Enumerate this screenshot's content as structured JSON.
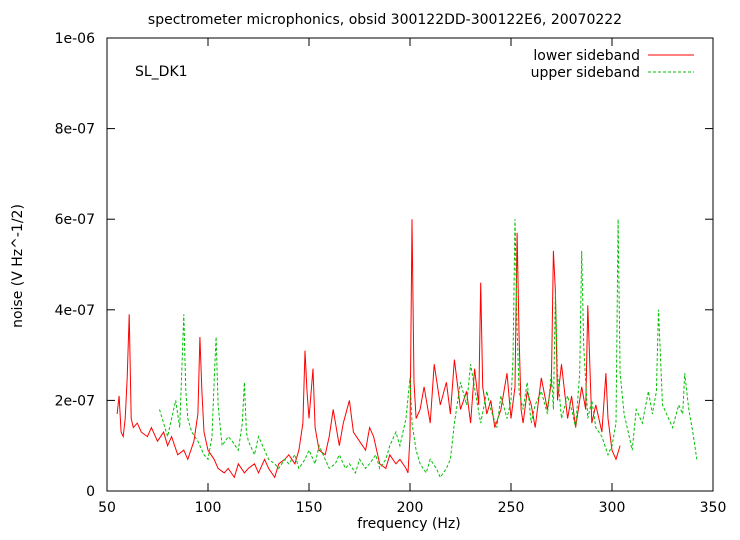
{
  "chart_data": {
    "type": "line",
    "title": "spectrometer microphonics, obsid 300122DD-300122E6, 20070222",
    "annotation": "SL_DK1",
    "xlabel": "frequency (Hz)",
    "ylabel": "noise (V Hz^-1/2)",
    "xlim": [
      50,
      350
    ],
    "ylim": [
      0,
      1e-06
    ],
    "x_ticks": [
      50,
      100,
      150,
      200,
      250,
      300,
      350
    ],
    "x_tick_labels": [
      "50",
      "100",
      "150",
      "200",
      "250",
      "300",
      "350"
    ],
    "y_ticks": [
      0,
      2e-07,
      4e-07,
      6e-07,
      8e-07,
      1e-06
    ],
    "y_tick_labels": [
      "0",
      "2e-07",
      "4e-07",
      "6e-07",
      "8e-07",
      "1e-06"
    ],
    "grid": false,
    "legend_position": "top-right",
    "series": [
      {
        "name": "lower sideband",
        "color": "#ff0000",
        "style": "solid",
        "x": [
          55,
          56,
          57,
          58,
          59,
          60,
          61,
          62,
          63,
          65,
          67,
          70,
          72,
          75,
          78,
          80,
          82,
          85,
          88,
          90,
          93,
          95,
          96,
          97,
          98,
          100,
          103,
          105,
          108,
          110,
          113,
          115,
          118,
          120,
          123,
          125,
          128,
          130,
          133,
          135,
          138,
          140,
          143,
          145,
          147,
          148,
          149,
          150,
          152,
          153,
          155,
          158,
          160,
          162,
          165,
          167,
          170,
          172,
          175,
          178,
          180,
          182,
          185,
          188,
          190,
          193,
          195,
          198,
          199,
          200,
          201,
          202,
          203,
          205,
          207,
          210,
          212,
          215,
          218,
          220,
          222,
          225,
          228,
          230,
          232,
          234,
          235,
          236,
          238,
          240,
          242,
          245,
          248,
          250,
          252,
          253,
          254,
          255,
          256,
          258,
          260,
          262,
          265,
          268,
          270,
          271,
          272,
          273,
          275,
          278,
          280,
          282,
          285,
          287,
          288,
          290,
          292,
          295,
          297,
          298,
          300,
          302,
          304
        ],
        "values": [
          1.7e-07,
          2.1e-07,
          1.3e-07,
          1.2e-07,
          1.6e-07,
          2.5e-07,
          3.9e-07,
          1.6e-07,
          1.4e-07,
          1.5e-07,
          1.3e-07,
          1.2e-07,
          1.4e-07,
          1.1e-07,
          1.3e-07,
          1e-07,
          1.2e-07,
          8e-08,
          9e-08,
          7e-08,
          1.1e-07,
          1.7e-07,
          3.4e-07,
          2.2e-07,
          1.3e-07,
          9e-08,
          7e-08,
          5e-08,
          4e-08,
          5e-08,
          3e-08,
          6e-08,
          4e-08,
          5e-08,
          6e-08,
          4e-08,
          7e-08,
          5e-08,
          3e-08,
          6e-08,
          7e-08,
          8e-08,
          6e-08,
          9e-08,
          1.5e-07,
          3.1e-07,
          2.2e-07,
          1.6e-07,
          2.7e-07,
          1.4e-07,
          9e-08,
          8e-08,
          1.2e-07,
          1.8e-07,
          1e-07,
          1.5e-07,
          2e-07,
          1.3e-07,
          1.1e-07,
          9e-08,
          1.4e-07,
          1.2e-07,
          6e-08,
          5e-08,
          8e-08,
          6e-08,
          7e-08,
          5e-08,
          4e-08,
          1.2e-07,
          6e-07,
          2.4e-07,
          1.6e-07,
          1.8e-07,
          2.3e-07,
          1.5e-07,
          2.8e-07,
          1.9e-07,
          2.4e-07,
          1.7e-07,
          2.9e-07,
          1.8e-07,
          2.2e-07,
          1.5e-07,
          2.7e-07,
          1.9e-07,
          4.6e-07,
          2.3e-07,
          1.7e-07,
          2e-07,
          1.4e-07,
          1.8e-07,
          2.6e-07,
          1.6e-07,
          2.3e-07,
          5.7e-07,
          3.4e-07,
          1.8e-07,
          1.5e-07,
          2.2e-07,
          1.9e-07,
          1.4e-07,
          2.5e-07,
          1.8e-07,
          2.4e-07,
          5.3e-07,
          4.4e-07,
          2e-07,
          2.8e-07,
          1.6e-07,
          2.1e-07,
          1.4e-07,
          2.3e-07,
          1.8e-07,
          4.1e-07,
          1.5e-07,
          1.9e-07,
          1.3e-07,
          2.6e-07,
          1.6e-07,
          9e-08,
          7e-08,
          1e-07
        ]
      },
      {
        "name": "upper sideband",
        "color": "#00c000",
        "style": "dashed",
        "x": [
          76,
          78,
          80,
          82,
          84,
          86,
          87,
          88,
          89,
          90,
          92,
          95,
          98,
          100,
          102,
          103,
          104,
          105,
          107,
          110,
          112,
          115,
          117,
          118,
          119,
          120,
          123,
          125,
          128,
          130,
          133,
          135,
          138,
          140,
          143,
          145,
          148,
          150,
          153,
          155,
          158,
          160,
          163,
          165,
          168,
          170,
          173,
          175,
          178,
          180,
          183,
          185,
          188,
          190,
          193,
          195,
          198,
          200,
          201,
          202,
          203,
          205,
          208,
          210,
          213,
          215,
          218,
          220,
          222,
          225,
          228,
          230,
          233,
          235,
          238,
          240,
          243,
          245,
          248,
          250,
          251,
          252,
          253,
          254,
          256,
          258,
          260,
          262,
          265,
          268,
          270,
          271,
          272,
          273,
          275,
          278,
          280,
          282,
          284,
          285,
          286,
          288,
          290,
          292,
          295,
          298,
          300,
          302,
          303,
          304,
          306,
          308,
          310,
          312,
          315,
          318,
          320,
          322,
          323,
          325,
          328,
          330,
          333,
          335,
          336,
          338,
          340,
          342
        ],
        "values": [
          1.8e-07,
          1.5e-07,
          1.2e-07,
          1.6e-07,
          2e-07,
          1.4e-07,
          2.6e-07,
          3.9e-07,
          2.2e-07,
          1.6e-07,
          1.3e-07,
          1.1e-07,
          8e-08,
          7e-08,
          1.2e-07,
          2.4e-07,
          3.4e-07,
          1.9e-07,
          1e-07,
          1.2e-07,
          1.1e-07,
          9e-08,
          1.5e-07,
          2.4e-07,
          1.3e-07,
          1.1e-07,
          8e-08,
          1.2e-07,
          9e-08,
          7e-08,
          6e-08,
          5e-08,
          7e-08,
          6e-08,
          8e-08,
          5e-08,
          7e-08,
          9e-08,
          6e-08,
          1e-07,
          7e-08,
          5e-08,
          6e-08,
          8e-08,
          5e-08,
          6e-08,
          4e-08,
          7e-08,
          5e-08,
          6e-08,
          8e-08,
          5e-08,
          7e-08,
          1e-07,
          1.3e-07,
          1e-07,
          1.6e-07,
          2.5e-07,
          1.5e-07,
          1.2e-07,
          9e-08,
          6e-08,
          4e-08,
          7e-08,
          5e-08,
          3e-08,
          5e-08,
          7e-08,
          1.5e-07,
          2.4e-07,
          1.9e-07,
          2.8e-07,
          2e-07,
          1.5e-07,
          2.2e-07,
          1.8e-07,
          1.4e-07,
          2.1e-07,
          1.6e-07,
          2e-07,
          2.9e-07,
          6e-07,
          3.6e-07,
          2.2e-07,
          1.8e-07,
          2.4e-07,
          1.5e-07,
          1.9e-07,
          2.2e-07,
          1.7e-07,
          2.6e-07,
          1.8e-07,
          4.4e-07,
          2.6e-07,
          1.6e-07,
          2.1e-07,
          1.8e-07,
          1.4e-07,
          2.6e-07,
          5.3e-07,
          3.2e-07,
          1.6e-07,
          2e-07,
          1.4e-07,
          1.2e-07,
          8e-08,
          1e-07,
          1.5e-07,
          6e-07,
          2.6e-07,
          1.7e-07,
          1.3e-07,
          9e-08,
          1.8e-07,
          1.5e-07,
          2.2e-07,
          1.7e-07,
          2.2e-07,
          4e-07,
          1.9e-07,
          1.6e-07,
          1.4e-07,
          1.9e-07,
          1.7e-07,
          2.6e-07,
          1.8e-07,
          1.3e-07,
          7e-08
        ]
      }
    ]
  }
}
